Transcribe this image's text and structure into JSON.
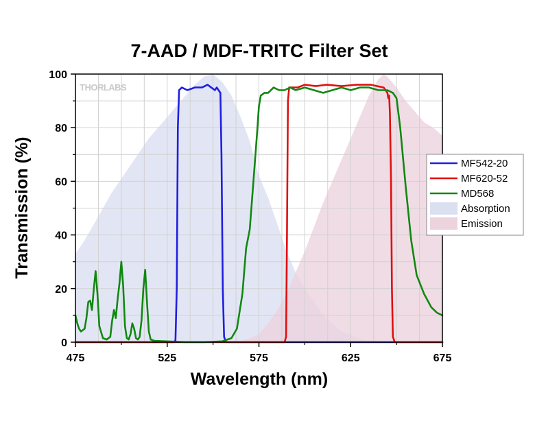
{
  "chart_data": {
    "type": "line",
    "title": "7-AAD / MDF-TRITC Filter Set",
    "xlabel": "Wavelength (nm)",
    "ylabel": "Transmission (%)",
    "xlim": [
      475,
      675
    ],
    "ylim": [
      0,
      100
    ],
    "x_ticks": [
      475,
      525,
      575,
      625,
      675
    ],
    "y_ticks": [
      0,
      20,
      40,
      60,
      80,
      100
    ],
    "grid": true,
    "legend_position": "right",
    "watermark": "THORLABS",
    "series": [
      {
        "name": "MF542-20",
        "kind": "line",
        "color": "#1f1fe0",
        "points": [
          [
            475,
            0
          ],
          [
            528,
            0
          ],
          [
            529.5,
            0.5
          ],
          [
            530.2,
            20
          ],
          [
            530.8,
            80
          ],
          [
            531.5,
            94
          ],
          [
            533,
            95
          ],
          [
            536,
            94
          ],
          [
            540,
            95
          ],
          [
            544,
            95
          ],
          [
            547,
            96
          ],
          [
            549,
            95
          ],
          [
            551,
            94
          ],
          [
            552,
            95
          ],
          [
            553,
            94
          ],
          [
            554,
            93
          ],
          [
            554.6,
            70
          ],
          [
            555.3,
            20
          ],
          [
            556,
            2
          ],
          [
            557,
            0
          ],
          [
            675,
            0
          ]
        ]
      },
      {
        "name": "MF620-52",
        "kind": "line",
        "color": "#e01010",
        "points": [
          [
            475,
            0
          ],
          [
            589,
            0
          ],
          [
            589.8,
            2
          ],
          [
            590.3,
            40
          ],
          [
            590.8,
            90
          ],
          [
            591.5,
            95
          ],
          [
            596,
            95
          ],
          [
            600,
            96
          ],
          [
            606,
            95.5
          ],
          [
            612,
            96
          ],
          [
            620,
            95.5
          ],
          [
            628,
            96
          ],
          [
            636,
            96
          ],
          [
            643,
            95
          ],
          [
            645,
            93
          ],
          [
            645.5,
            91
          ],
          [
            646,
            92
          ],
          [
            646.4,
            85
          ],
          [
            647,
            60
          ],
          [
            647.5,
            20
          ],
          [
            648,
            2
          ],
          [
            649,
            0
          ],
          [
            675,
            0
          ]
        ]
      },
      {
        "name": "MD568",
        "kind": "line",
        "color": "#118811",
        "points": [
          [
            475,
            10
          ],
          [
            476,
            7
          ],
          [
            477,
            5
          ],
          [
            478,
            4
          ],
          [
            480,
            5
          ],
          [
            481,
            9
          ],
          [
            482,
            15
          ],
          [
            483,
            15.5
          ],
          [
            484,
            12
          ],
          [
            485,
            20
          ],
          [
            486,
            26.5
          ],
          [
            487,
            18
          ],
          [
            488,
            6
          ],
          [
            490,
            1.5
          ],
          [
            492,
            1
          ],
          [
            494,
            2
          ],
          [
            495,
            8
          ],
          [
            496,
            12
          ],
          [
            497,
            9
          ],
          [
            498,
            16
          ],
          [
            499,
            22
          ],
          [
            500,
            30
          ],
          [
            501,
            21
          ],
          [
            502,
            6
          ],
          [
            503,
            1.5
          ],
          [
            504,
            1
          ],
          [
            505,
            3
          ],
          [
            506,
            7
          ],
          [
            507,
            5
          ],
          [
            508,
            1.5
          ],
          [
            509,
            1
          ],
          [
            510,
            2
          ],
          [
            511,
            8
          ],
          [
            512,
            20
          ],
          [
            513,
            27
          ],
          [
            514,
            15
          ],
          [
            515,
            4
          ],
          [
            516,
            1
          ],
          [
            518,
            0.5
          ],
          [
            525,
            0.3
          ],
          [
            535,
            0
          ],
          [
            545,
            0
          ],
          [
            555,
            0.3
          ],
          [
            560,
            1.5
          ],
          [
            563,
            5
          ],
          [
            566,
            18
          ],
          [
            568,
            35
          ],
          [
            570,
            42
          ],
          [
            572,
            60
          ],
          [
            574,
            78
          ],
          [
            575,
            88
          ],
          [
            576,
            92
          ],
          [
            578,
            93
          ],
          [
            580,
            93
          ],
          [
            583,
            95
          ],
          [
            586,
            94
          ],
          [
            589,
            94
          ],
          [
            592,
            95
          ],
          [
            595,
            94
          ],
          [
            600,
            95
          ],
          [
            605,
            94
          ],
          [
            610,
            93
          ],
          [
            615,
            94
          ],
          [
            620,
            95
          ],
          [
            625,
            94
          ],
          [
            630,
            95
          ],
          [
            635,
            95
          ],
          [
            640,
            94
          ],
          [
            645,
            94
          ],
          [
            648,
            93
          ],
          [
            650,
            91
          ],
          [
            652,
            80
          ],
          [
            655,
            58
          ],
          [
            658,
            38
          ],
          [
            661,
            25
          ],
          [
            665,
            18
          ],
          [
            669,
            13
          ],
          [
            672,
            11
          ],
          [
            675,
            10
          ]
        ]
      },
      {
        "name": "Absorption",
        "kind": "area",
        "color": "#dbe0f1",
        "points": [
          [
            475,
            33
          ],
          [
            480,
            38
          ],
          [
            485,
            44
          ],
          [
            490,
            50
          ],
          [
            495,
            56
          ],
          [
            500,
            61
          ],
          [
            505,
            66
          ],
          [
            510,
            71
          ],
          [
            515,
            76
          ],
          [
            520,
            80
          ],
          [
            525,
            84
          ],
          [
            530,
            88
          ],
          [
            535,
            92
          ],
          [
            540,
            96
          ],
          [
            545,
            99
          ],
          [
            550,
            100
          ],
          [
            555,
            97
          ],
          [
            560,
            92
          ],
          [
            565,
            84
          ],
          [
            570,
            75
          ],
          [
            575,
            62
          ],
          [
            580,
            54
          ],
          [
            585,
            44
          ],
          [
            590,
            34
          ],
          [
            595,
            26
          ],
          [
            600,
            20
          ],
          [
            605,
            15
          ],
          [
            610,
            10
          ],
          [
            615,
            7
          ],
          [
            620,
            4
          ],
          [
            625,
            2.5
          ],
          [
            630,
            1.2
          ],
          [
            635,
            0.5
          ],
          [
            640,
            0.2
          ],
          [
            650,
            0
          ],
          [
            675,
            0
          ]
        ]
      },
      {
        "name": "Emission",
        "kind": "area",
        "color": "#ecd3de",
        "points": [
          [
            555,
            0
          ],
          [
            565,
            0.5
          ],
          [
            570,
            1.5
          ],
          [
            575,
            3
          ],
          [
            580,
            7
          ],
          [
            585,
            12
          ],
          [
            590,
            18
          ],
          [
            595,
            26
          ],
          [
            600,
            34
          ],
          [
            605,
            43
          ],
          [
            610,
            52
          ],
          [
            615,
            60
          ],
          [
            620,
            68
          ],
          [
            625,
            76
          ],
          [
            630,
            84
          ],
          [
            635,
            92
          ],
          [
            640,
            98
          ],
          [
            643,
            100
          ],
          [
            645,
            99
          ],
          [
            650,
            95
          ],
          [
            655,
            90
          ],
          [
            660,
            86
          ],
          [
            665,
            82
          ],
          [
            670,
            80
          ],
          [
            675,
            77
          ]
        ]
      }
    ]
  }
}
